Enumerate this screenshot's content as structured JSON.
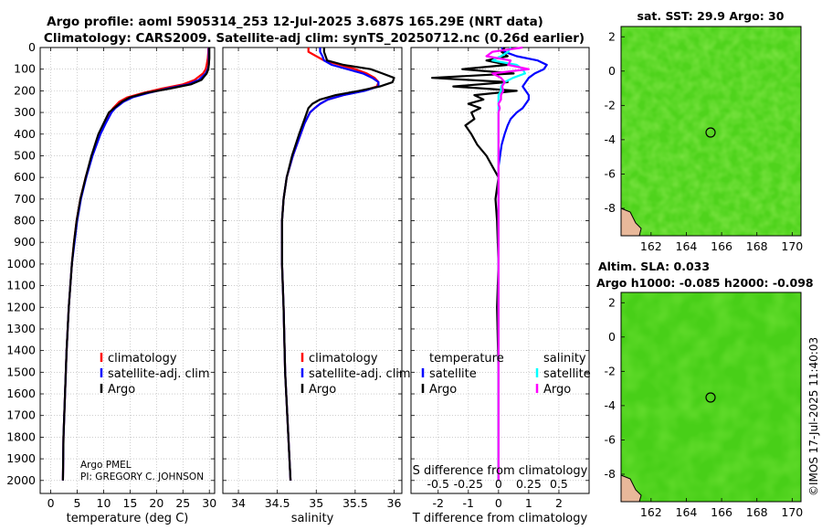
{
  "header": {
    "title_line1": "Argo profile: aoml 5905314_253 12-Jul-2025 3.687S 165.29E (NRT data)",
    "title_line2": "Climatology: CARS2009. Satellite-adj clim: synTS_20250712.nc (0.26d earlier)"
  },
  "colors": {
    "climatology": "#ff0000",
    "satellite_adj": "#0000ff",
    "argo": "#000000",
    "t_satellite": "#0000ff",
    "s_satellite": "#00ffff",
    "s_argo": "#ff00ff",
    "grid": "#b0b0b0",
    "map_green": "#55dd22",
    "map_land": "#e8b89a"
  },
  "credits": {
    "line1": "Argo PMEL",
    "line2": "PI: GREGORY C. JOHNSON",
    "imos": "©IMOS 17-Jul-2025 11:40:03"
  },
  "sst_map": {
    "title": "sat. SST: 29.9 Argo: 30",
    "xticks": [
      162,
      164,
      166,
      168,
      170
    ],
    "yticks": [
      2,
      0,
      -2,
      -4,
      -6,
      -8
    ],
    "marker": "float-position"
  },
  "sla_map": {
    "title_line1": "Altim. SLA: 0.033",
    "title_line2": "Argo h1000: -0.085 h2000: -0.098",
    "xticks": [
      162,
      164,
      166,
      168,
      170
    ],
    "yticks": [
      2,
      0,
      -2,
      -4,
      -6,
      -8
    ],
    "marker": "float-position"
  },
  "chart_data": [
    {
      "type": "line",
      "id": "temperature",
      "xlabel": "temperature (deg C)",
      "ylabel": "",
      "xlim": [
        -2,
        31
      ],
      "ylim": [
        2060,
        0
      ],
      "xticks": [
        0,
        5,
        10,
        15,
        20,
        25,
        30
      ],
      "yticks": [
        0,
        100,
        200,
        300,
        400,
        500,
        600,
        700,
        800,
        900,
        1000,
        1100,
        1200,
        1300,
        1400,
        1500,
        1600,
        1700,
        1800,
        1900,
        2000
      ],
      "grid": true,
      "legend": {
        "position": "lower-right",
        "entries": [
          "climatology",
          "satellite-adj. clim",
          "Argo"
        ]
      },
      "depth": [
        0,
        20,
        50,
        80,
        100,
        120,
        150,
        170,
        190,
        210,
        230,
        250,
        280,
        300,
        350,
        400,
        500,
        600,
        700,
        800,
        900,
        1000,
        1200,
        1400,
        1600,
        1800,
        2000
      ],
      "series": [
        {
          "name": "climatology",
          "values": [
            29.8,
            29.8,
            29.7,
            29.5,
            29.3,
            28.8,
            27.2,
            25.0,
            21.0,
            17.5,
            14.5,
            13.0,
            11.8,
            11.2,
            10.2,
            9.2,
            7.8,
            6.6,
            5.6,
            4.9,
            4.4,
            4.0,
            3.4,
            3.0,
            2.7,
            2.4,
            2.3
          ]
        },
        {
          "name": "satellite-adj. clim",
          "values": [
            29.9,
            29.9,
            29.9,
            29.9,
            29.7,
            29.3,
            28.0,
            26.0,
            22.0,
            18.5,
            15.5,
            13.8,
            12.2,
            11.5,
            10.4,
            9.4,
            7.9,
            6.7,
            5.7,
            5.0,
            4.5,
            4.0,
            3.4,
            3.0,
            2.7,
            2.4,
            2.3
          ]
        },
        {
          "name": "Argo",
          "values": [
            30.0,
            30.0,
            30.0,
            29.9,
            29.8,
            29.5,
            28.5,
            26.5,
            22.5,
            18.0,
            15.0,
            13.5,
            12.0,
            11.0,
            10.0,
            9.0,
            7.7,
            6.6,
            5.6,
            4.9,
            4.4,
            4.0,
            3.4,
            3.0,
            2.7,
            2.4,
            2.3
          ]
        }
      ]
    },
    {
      "type": "line",
      "id": "salinity",
      "xlabel": "salinity",
      "ylabel": "",
      "xlim": [
        33.8,
        36.1
      ],
      "ylim": [
        2060,
        0
      ],
      "xticks": [
        34,
        34.5,
        35,
        35.5,
        36
      ],
      "yticks": [
        0,
        100,
        200,
        300,
        400,
        500,
        600,
        700,
        800,
        900,
        1000,
        1100,
        1200,
        1300,
        1400,
        1500,
        1600,
        1700,
        1800,
        1900,
        2000
      ],
      "grid": true,
      "legend": {
        "position": "lower-right",
        "entries": [
          "climatology",
          "satellite-adj. clim",
          "Argo"
        ]
      },
      "depth": [
        0,
        20,
        40,
        60,
        80,
        100,
        120,
        140,
        160,
        180,
        200,
        220,
        240,
        260,
        280,
        300,
        350,
        400,
        500,
        600,
        700,
        800,
        1000,
        1200,
        1500,
        2000
      ],
      "series": [
        {
          "name": "climatology",
          "values": [
            34.9,
            34.9,
            35.0,
            35.1,
            35.3,
            35.5,
            35.65,
            35.75,
            35.8,
            35.78,
            35.6,
            35.35,
            35.15,
            35.05,
            34.98,
            34.92,
            34.85,
            34.8,
            34.7,
            34.62,
            34.58,
            34.56,
            34.56,
            34.58,
            34.6,
            34.67
          ]
        },
        {
          "name": "satellite-adj. clim",
          "values": [
            35.05,
            35.05,
            35.08,
            35.1,
            35.2,
            35.4,
            35.6,
            35.72,
            35.8,
            35.8,
            35.62,
            35.35,
            35.15,
            35.05,
            34.98,
            34.92,
            34.85,
            34.8,
            34.7,
            34.62,
            34.58,
            34.56,
            34.56,
            34.58,
            34.6,
            34.67
          ]
        },
        {
          "name": "Argo",
          "values": [
            35.1,
            35.1,
            35.12,
            35.14,
            35.35,
            35.7,
            35.85,
            36.0,
            35.98,
            35.82,
            35.55,
            35.25,
            35.05,
            34.95,
            34.9,
            34.88,
            34.83,
            34.78,
            34.69,
            34.62,
            34.58,
            34.56,
            34.56,
            34.58,
            34.6,
            34.67
          ]
        }
      ]
    },
    {
      "type": "line",
      "id": "differences",
      "xlabel": "T difference from climatology",
      "x2label": "S difference from climatology",
      "ylabel": "",
      "xlim": [
        -2.9,
        3.0
      ],
      "x2lim": [
        -0.725,
        0.75
      ],
      "ylim": [
        2060,
        0
      ],
      "xticks": [
        -2,
        -1,
        0,
        1,
        2
      ],
      "x2ticks": [
        -0.5,
        -0.25,
        0,
        0.25,
        0.5
      ],
      "x2ticklabels": [
        "-0.5",
        "-0.25",
        "0",
        "0.25",
        "0.5"
      ],
      "yticks": [
        0,
        100,
        200,
        300,
        400,
        500,
        600,
        700,
        800,
        900,
        1000,
        1100,
        1200,
        1300,
        1400,
        1500,
        1600,
        1700,
        1800,
        1900,
        2000
      ],
      "grid": true,
      "legend": {
        "position": "lower",
        "temperature_header": "temperature",
        "salinity_header": "salinity",
        "entries": [
          "satellite",
          "Argo",
          "satellite",
          "Argo"
        ]
      },
      "depth": [
        0,
        20,
        40,
        60,
        80,
        100,
        120,
        140,
        160,
        180,
        200,
        220,
        240,
        260,
        280,
        300,
        330,
        360,
        400,
        450,
        500,
        550,
        600,
        700,
        800,
        1000,
        1200,
        1500,
        2000
      ],
      "series": [
        {
          "name": "temperature satellite",
          "values": [
            0.1,
            0.2,
            0.6,
            1.3,
            1.6,
            1.5,
            1.2,
            1.0,
            0.9,
            0.8,
            0.9,
            1.0,
            1.0,
            0.9,
            0.8,
            0.6,
            0.4,
            0.3,
            0.2,
            0.1,
            0.05,
            0.0,
            0.0,
            0.0,
            0.0,
            0.0,
            0.0,
            0.0,
            0.0
          ]
        },
        {
          "name": "temperature Argo",
          "values": [
            0.2,
            0.1,
            0.3,
            -0.4,
            0.3,
            -1.2,
            0.5,
            -2.2,
            0.3,
            -1.5,
            0.6,
            -0.8,
            -0.5,
            -1.0,
            -0.6,
            -0.9,
            -0.8,
            -1.1,
            -0.9,
            -0.7,
            -0.4,
            -0.2,
            0.0,
            -0.1,
            -0.05,
            0.0,
            -0.05,
            0.0,
            0.0
          ]
        },
        {
          "name": "salinity satellite",
          "values": [
            0.1,
            0.08,
            0.02,
            -0.05,
            0.15,
            0.2,
            0.22,
            0.12,
            0.05,
            0.02,
            0.02,
            0.0,
            0.0,
            0.0,
            0.0,
            0.0,
            0.0,
            0.0,
            0.0,
            0.0,
            0.0,
            0.0,
            0.0,
            0.0,
            0.0,
            0.0,
            0.0,
            0.0,
            0.0
          ]
        },
        {
          "name": "salinity Argo",
          "values": [
            0.2,
            -0.05,
            -0.1,
            0.1,
            0.08,
            0.25,
            -0.05,
            0.02,
            0.05,
            0.03,
            0.04,
            0.02,
            0.02,
            0.0,
            0.01,
            0.0,
            0.0,
            0.0,
            0.0,
            0.0,
            0.0,
            0.0,
            0.0,
            0.0,
            0.0,
            0.0,
            0.0,
            0.0,
            0.0
          ]
        }
      ]
    }
  ]
}
